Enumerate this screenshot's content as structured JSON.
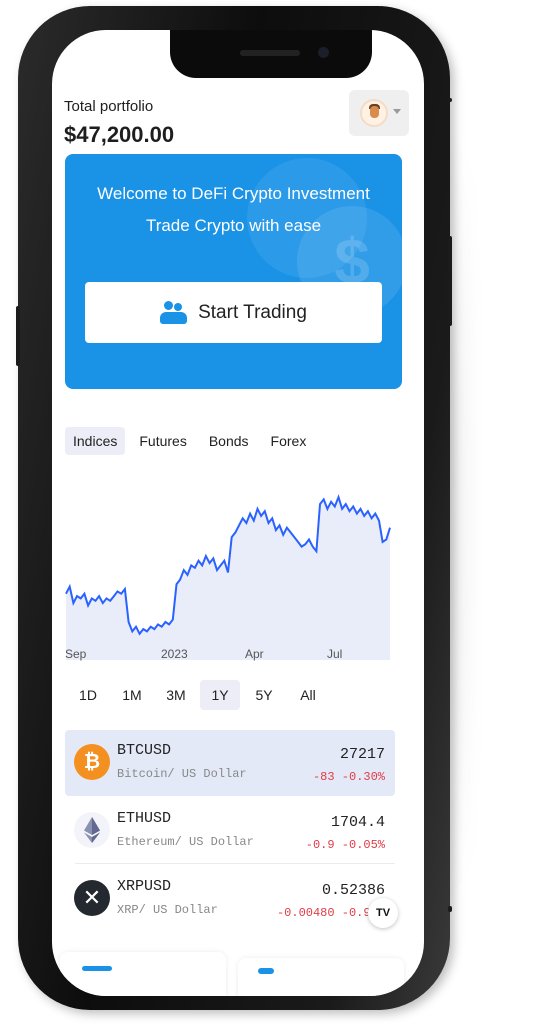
{
  "header": {
    "portfolio_label": "Total portfolio",
    "portfolio_value": "$47,200.00"
  },
  "banner": {
    "line1": "Welcome to DeFi Crypto Investment",
    "line2": "Trade Crypto with ease",
    "button_label": "Start Trading",
    "color": "#1a92e6"
  },
  "tabs": [
    {
      "label": "Indices",
      "active": true
    },
    {
      "label": "Futures",
      "active": false
    },
    {
      "label": "Bonds",
      "active": false
    },
    {
      "label": "Forex",
      "active": false
    }
  ],
  "chart_data": {
    "type": "area",
    "x_tick_labels": [
      "Sep",
      "2023",
      "Apr",
      "Jul"
    ],
    "line_color": "#2962ff",
    "fill_color": "#dfe6f7",
    "values": [
      56,
      59,
      52,
      55,
      54,
      56,
      51,
      54,
      53,
      55,
      52,
      54,
      53,
      55,
      57,
      56,
      58,
      44,
      40,
      42,
      39,
      41,
      40,
      42,
      41,
      43,
      42,
      44,
      43,
      45,
      60,
      62,
      66,
      64,
      68,
      67,
      70,
      68,
      72,
      69,
      71,
      66,
      68,
      70,
      65,
      80,
      82,
      85,
      88,
      86,
      90,
      87,
      92,
      89,
      91,
      86,
      88,
      83,
      85,
      81,
      84,
      82,
      80,
      78,
      76,
      77,
      79,
      76,
      74,
      94,
      96,
      92,
      95,
      93,
      97,
      92,
      94,
      91,
      93,
      90,
      92,
      89,
      91,
      88,
      90,
      87,
      78,
      79,
      84
    ],
    "ylim": [
      30,
      100
    ]
  },
  "ranges": [
    {
      "label": "1D",
      "active": false
    },
    {
      "label": "1M",
      "active": false
    },
    {
      "label": "3M",
      "active": false
    },
    {
      "label": "1Y",
      "active": true
    },
    {
      "label": "5Y",
      "active": false
    },
    {
      "label": "All",
      "active": false
    }
  ],
  "tickers": [
    {
      "symbol": "BTCUSD",
      "name": "Bitcoin/ US Dollar",
      "price": "27217",
      "change": "-83  -0.30%",
      "icon": "bitcoin-icon",
      "active": true
    },
    {
      "symbol": "ETHUSD",
      "name": "Ethereum/ US Dollar",
      "price": "1704.4",
      "change": "-0.9  -0.05%",
      "icon": "ethereum-icon",
      "active": false
    },
    {
      "symbol": "XRPUSD",
      "name": "XRP/ US Dollar",
      "price": "0.52386",
      "change": "-0.00480  -0.91%",
      "icon": "xrp-icon",
      "active": false
    }
  ],
  "tv_badge": "TV"
}
